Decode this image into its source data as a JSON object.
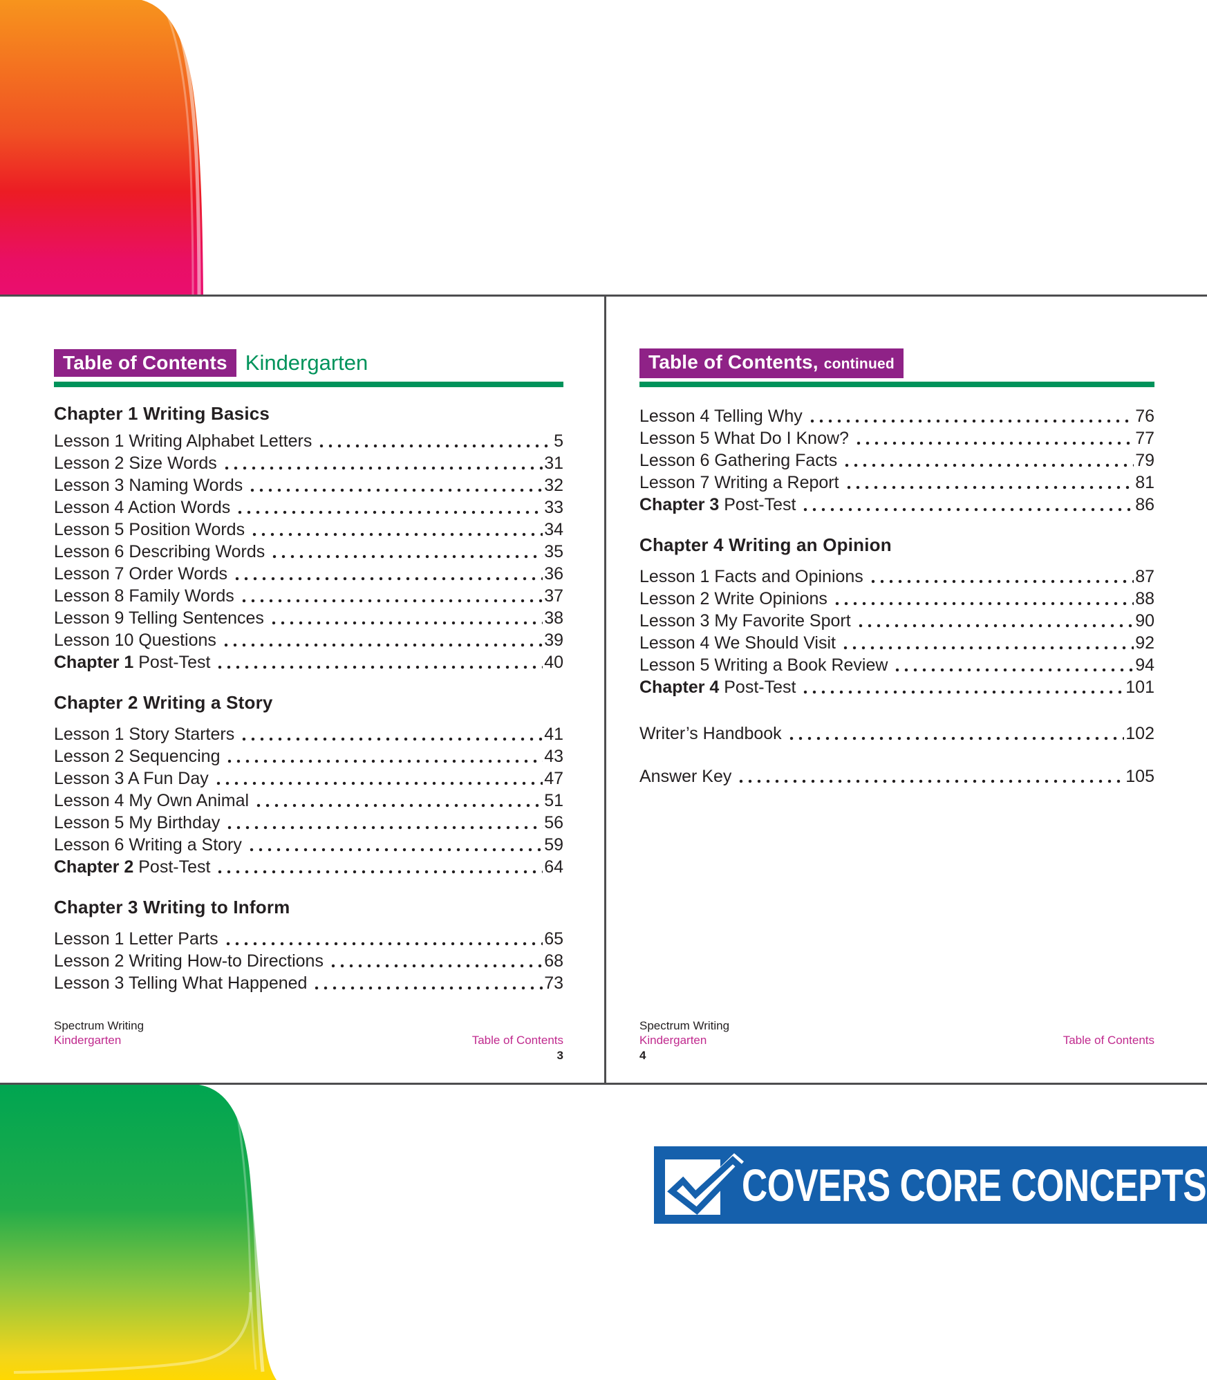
{
  "colors": {
    "purple": "#8F2287",
    "green": "#00935B",
    "magenta": "#C02A8E",
    "blue": "#1560AC",
    "ink": "#231F20",
    "line": "#4D4D4F"
  },
  "page_left": {
    "header": {
      "badge": "Table of Contents",
      "title": "Kindergarten"
    },
    "sections": [
      {
        "heading": "Chapter 1 Writing Basics",
        "variant": "first",
        "rows": [
          {
            "text": "Lesson 1 Writing Alphabet Letters",
            "page": "5"
          },
          {
            "text": "Lesson 2 Size Words",
            "page": "31"
          },
          {
            "text": "Lesson 3 Naming Words",
            "page": "32"
          },
          {
            "text": "Lesson 4 Action Words",
            "page": "33"
          },
          {
            "text": "Lesson 5 Position Words",
            "page": "34"
          },
          {
            "text": "Lesson 6 Describing Words",
            "page": "35"
          },
          {
            "text": "Lesson 7 Order Words",
            "page": "36"
          },
          {
            "text": "Lesson 8 Family Words",
            "page": "37"
          },
          {
            "text": "Lesson 9 Telling Sentences",
            "page": "38"
          },
          {
            "text": "Lesson 10 Questions",
            "page": "39"
          },
          {
            "prefix": "Chapter 1",
            "text": " Post-Test",
            "page": "40"
          }
        ]
      },
      {
        "heading": "Chapter 2 Writing a Story",
        "rows": [
          {
            "text": "Lesson 1 Story Starters",
            "page": "41"
          },
          {
            "text": "Lesson 2 Sequencing",
            "page": "43"
          },
          {
            "text": "Lesson 3 A Fun Day",
            "page": "47"
          },
          {
            "text": "Lesson 4 My Own Animal",
            "page": "51"
          },
          {
            "text": "Lesson 5 My Birthday",
            "page": "56"
          },
          {
            "text": "Lesson 6 Writing a Story",
            "page": "59"
          },
          {
            "prefix": "Chapter 2",
            "text": " Post-Test",
            "page": "64"
          }
        ]
      },
      {
        "heading": "Chapter 3 Writing to Inform",
        "rows": [
          {
            "text": "Lesson 1 Letter Parts",
            "page": "65"
          },
          {
            "text": "Lesson 2 Writing How-to Directions",
            "page": "68"
          },
          {
            "text": "Lesson 3 Telling What Happened",
            "page": "73"
          }
        ]
      }
    ],
    "footer": {
      "book": "Spectrum Writing",
      "grade": "Kindergarten",
      "section": "Table of Contents",
      "page_number": "3"
    }
  },
  "page_right": {
    "header": {
      "badge": "Table of Contents,",
      "badge_suffix": "continued"
    },
    "sections": [
      {
        "heading": "",
        "variant": "continuation",
        "rows": [
          {
            "text": "Lesson 4 Telling Why",
            "page": "76"
          },
          {
            "text": "Lesson 5 What Do I Know?",
            "page": "77"
          },
          {
            "text": "Lesson 6 Gathering Facts",
            "page": "79"
          },
          {
            "text": "Lesson 7 Writing a Report",
            "page": "81"
          },
          {
            "prefix": "Chapter 3",
            "text": " Post-Test",
            "page": "86"
          }
        ]
      },
      {
        "heading": "Chapter 4 Writing an Opinion",
        "rows": [
          {
            "text": "Lesson 1 Facts and Opinions",
            "page": "87"
          },
          {
            "text": "Lesson 2 Write Opinions",
            "page": "88"
          },
          {
            "text": "Lesson 3 My Favorite Sport",
            "page": "90"
          },
          {
            "text": "Lesson 4 We Should Visit",
            "page": "92"
          },
          {
            "text": "Lesson 5 Writing a Book Review",
            "page": "94"
          },
          {
            "prefix": "Chapter 4",
            "text": " Post-Test",
            "page": "101"
          }
        ]
      },
      {
        "heading": "",
        "variant": "standalone",
        "rows": [
          {
            "text": "Writer’s Handbook",
            "page": "102",
            "standalone": "first"
          },
          {
            "text": "Answer Key",
            "page": "105",
            "standalone": "true"
          }
        ]
      }
    ],
    "footer": {
      "book": "Spectrum Writing",
      "grade": "Kindergarten",
      "section": "Table of Contents",
      "page_number": "4"
    }
  },
  "banner": {
    "label": "COVERS CORE CONCEPTS",
    "icon": "checkmark"
  }
}
